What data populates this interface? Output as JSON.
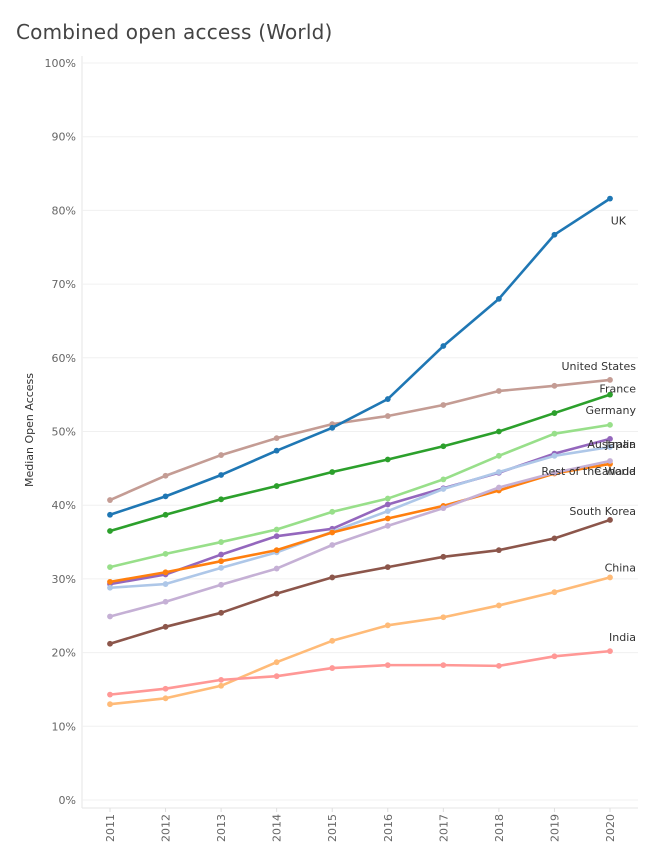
{
  "page": {
    "title": "Combined open access (World)"
  },
  "chart_data": {
    "type": "line",
    "title": "Combined open access (World)",
    "xlabel": "",
    "ylabel": "Median Open Access",
    "x": [
      "2011",
      "2012",
      "2013",
      "2014",
      "2015",
      "2016",
      "2017",
      "2018",
      "2019",
      "2020"
    ],
    "ylim": [
      0,
      100
    ],
    "yticks": [
      "0%",
      "10%",
      "20%",
      "30%",
      "40%",
      "50%",
      "60%",
      "70%",
      "80%",
      "90%",
      "100%"
    ],
    "grid": true,
    "series": [
      {
        "name": "United States",
        "color": "#c49c94",
        "values": [
          40.7,
          44.0,
          46.8,
          49.1,
          51.0,
          52.1,
          53.6,
          55.5,
          56.2,
          57.0
        ]
      },
      {
        "name": "UK",
        "color": "#1f77b4",
        "values": [
          38.7,
          41.2,
          44.1,
          47.4,
          50.5,
          54.4,
          61.6,
          68.0,
          76.7,
          81.6
        ]
      },
      {
        "name": "France",
        "color": "#2ca02c",
        "values": [
          36.5,
          38.7,
          40.8,
          42.6,
          44.5,
          46.2,
          48.0,
          50.0,
          52.5,
          55.0
        ]
      },
      {
        "name": "Germany",
        "color": "#98df8a",
        "values": [
          31.6,
          33.4,
          35.0,
          36.7,
          39.1,
          40.9,
          43.5,
          46.7,
          49.7,
          50.9
        ]
      },
      {
        "name": "Japan",
        "color": "#9467bd",
        "values": [
          29.3,
          30.6,
          33.3,
          35.8,
          36.8,
          40.1,
          42.3,
          44.4,
          47.0,
          49.0
        ]
      },
      {
        "name": "Australia",
        "color": "#aec7e8",
        "values": [
          28.8,
          29.3,
          31.5,
          33.6,
          36.4,
          39.2,
          42.2,
          44.5,
          46.7,
          47.9
        ]
      },
      {
        "name": "Canada",
        "color": "#ff7f0e",
        "values": [
          29.6,
          30.9,
          32.4,
          33.9,
          36.3,
          38.2,
          39.9,
          42.0,
          44.3,
          45.6
        ]
      },
      {
        "name": "Rest of the World",
        "color": "#c5b0d5",
        "values": [
          24.9,
          26.9,
          29.2,
          31.4,
          34.6,
          37.2,
          39.6,
          42.4,
          44.4,
          46.0
        ]
      },
      {
        "name": "South Korea",
        "color": "#8c564b",
        "values": [
          21.2,
          23.5,
          25.4,
          28.0,
          30.2,
          31.6,
          33.0,
          33.9,
          35.5,
          38.0
        ]
      },
      {
        "name": "China",
        "color": "#ffbb78",
        "values": [
          13.0,
          13.8,
          15.5,
          18.7,
          21.6,
          23.7,
          24.8,
          26.4,
          28.2,
          30.2
        ]
      },
      {
        "name": "India",
        "color": "#ff9896",
        "values": [
          14.3,
          15.1,
          16.3,
          16.8,
          17.9,
          18.3,
          18.3,
          18.2,
          19.5,
          20.2
        ]
      }
    ]
  }
}
